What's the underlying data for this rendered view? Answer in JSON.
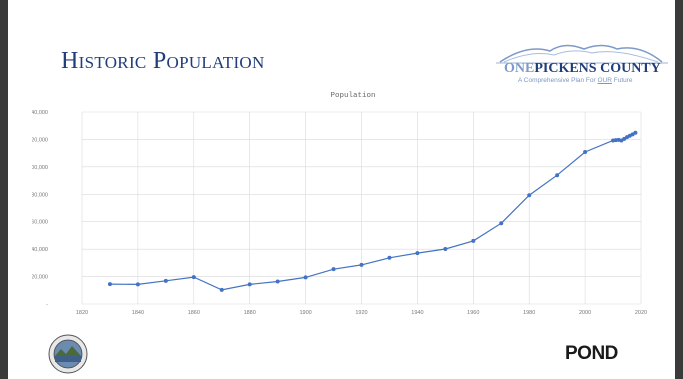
{
  "slide": {
    "title": "Historic Population",
    "logo": {
      "one": "ONE",
      "name": "PICKENS COUNTY",
      "tagline_pre": "A Comprehensive Plan For ",
      "tagline_our": "OUR",
      "tagline_post": " Future"
    },
    "footer_logo": "POND"
  },
  "colors": {
    "title": "#1f3d7a",
    "series": "#4472c4",
    "grid": "#d9d9d9"
  },
  "chart_data": {
    "type": "line",
    "title": "Population",
    "xlabel": "",
    "ylabel": "",
    "xlim": [
      1820,
      2020
    ],
    "ylim": [
      0,
      140000
    ],
    "x_ticks": [
      "1820",
      "1840",
      "1860",
      "1880",
      "1900",
      "1920",
      "1940",
      "1960",
      "1980",
      "2000",
      "2020"
    ],
    "y_ticks": [
      "-",
      "20,000",
      "40,000",
      "60,000",
      "80,000",
      "100,000",
      "120,000",
      "140,000"
    ],
    "grid": "vertical and horizontal",
    "legend": "none",
    "series": [
      {
        "x": [
          1830,
          1840,
          1850,
          1860,
          1870,
          1880,
          1890,
          1900,
          1910,
          1920,
          1930,
          1940,
          1950,
          1960,
          1970,
          1980,
          1990,
          2000,
          2010,
          2011,
          2012,
          2013,
          2014,
          2015,
          2016,
          2017,
          2018
        ],
        "y": [
          14500,
          14300,
          16900,
          19600,
          10300,
          14300,
          16400,
          19400,
          25400,
          28500,
          33700,
          37100,
          40100,
          46000,
          58900,
          79300,
          93900,
          110800,
          119200,
          119500,
          119700,
          119200,
          120400,
          121700,
          122700,
          123700,
          124900
        ]
      }
    ]
  }
}
